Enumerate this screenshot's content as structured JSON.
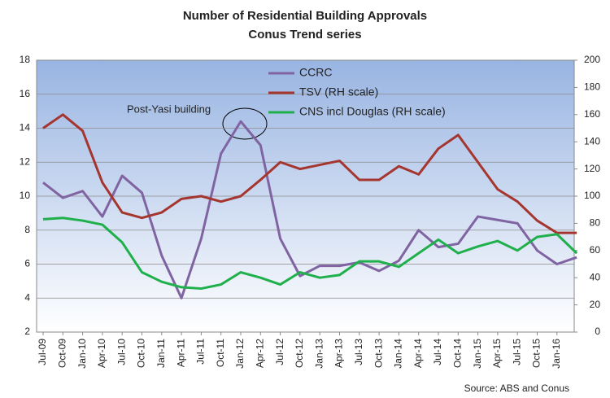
{
  "chart_data": {
    "type": "line",
    "title": "Number of Residential Building Approvals",
    "subtitle": "Conus Trend series",
    "annotation": "Post-Yasi building",
    "source": "Source: ABS and Conus",
    "categories": [
      "Jul-09",
      "Oct-09",
      "Jan-10",
      "Apr-10",
      "Jul-10",
      "Oct-10",
      "Jan-11",
      "Apr-11",
      "Jul-11",
      "Oct-11",
      "Jan-12",
      "Apr-12",
      "Jul-12",
      "Oct-12",
      "Jan-13",
      "Apr-13",
      "Jul-13",
      "Oct-13",
      "Jan-14",
      "Apr-14",
      "Jul-14",
      "Oct-14",
      "Jan-15",
      "Apr-15",
      "Jul-15",
      "Oct-15",
      "Jan-16",
      null
    ],
    "series": [
      {
        "name": "CCRC",
        "color": "#8064a2",
        "values": [
          10.8,
          9.9,
          10.3,
          8.8,
          11.2,
          10.2,
          6.5,
          4.0,
          7.5,
          12.5,
          14.4,
          13.0,
          7.5,
          5.3,
          5.9,
          5.9,
          6.1,
          5.6,
          6.2,
          8.0,
          7.0,
          7.2,
          8.8,
          8.6,
          8.4,
          6.8,
          6.0,
          6.4
        ]
      },
      {
        "name": "TSV (RH scale)",
        "color": "#a5362f",
        "axis": "y2",
        "values": [
          150,
          160,
          148,
          110,
          88,
          84,
          88,
          98,
          100,
          96,
          100,
          112,
          125,
          120,
          123,
          126,
          112,
          112,
          122,
          116,
          135,
          145,
          125,
          105,
          96,
          82,
          73,
          73
        ]
      },
      {
        "name": "CNS incl Douglas (RH scale)",
        "color": "#1fb04c",
        "axis": "y2",
        "values": [
          83,
          84,
          82,
          79,
          66,
          44,
          37,
          33,
          32,
          35,
          44,
          40,
          35,
          44,
          40,
          42,
          52,
          52,
          48,
          58,
          68,
          58,
          63,
          67,
          60,
          70,
          72,
          58
        ]
      }
    ],
    "ylim": [
      2,
      18
    ],
    "yticks": [
      2,
      4,
      6,
      8,
      10,
      12,
      14,
      16,
      18
    ],
    "y2lim": [
      0,
      200
    ],
    "y2ticks": [
      0,
      20,
      40,
      60,
      80,
      100,
      120,
      140,
      160,
      180,
      200
    ],
    "grid": true
  }
}
